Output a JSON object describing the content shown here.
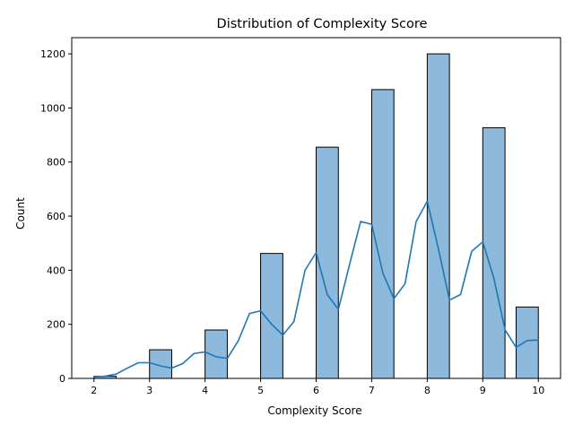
{
  "chart_data": {
    "type": "bar",
    "title": "Distribution of Complexity Score",
    "xlabel": "Complexity Score",
    "ylabel": "Count",
    "x_ticks": [
      2,
      3,
      4,
      5,
      6,
      7,
      8,
      9,
      10
    ],
    "y_ticks": [
      0,
      200,
      400,
      600,
      800,
      1000,
      1200
    ],
    "xlim": [
      1.6,
      10.4
    ],
    "ylim": [
      0,
      1260
    ],
    "grid": false,
    "bars": [
      {
        "x_start": 2.0,
        "x_end": 2.4,
        "count": 8
      },
      {
        "x_start": 3.0,
        "x_end": 3.4,
        "count": 106
      },
      {
        "x_start": 4.0,
        "x_end": 4.4,
        "count": 179
      },
      {
        "x_start": 5.0,
        "x_end": 5.4,
        "count": 462
      },
      {
        "x_start": 6.0,
        "x_end": 6.4,
        "count": 855
      },
      {
        "x_start": 7.0,
        "x_end": 7.4,
        "count": 1068
      },
      {
        "x_start": 8.0,
        "x_end": 8.4,
        "count": 1200
      },
      {
        "x_start": 9.0,
        "x_end": 9.4,
        "count": 927
      },
      {
        "x_start": 9.6,
        "x_end": 10.0,
        "count": 264
      }
    ],
    "kde_curve": {
      "x": [
        2.0,
        2.2,
        2.4,
        2.6,
        2.8,
        3.0,
        3.2,
        3.4,
        3.6,
        3.8,
        4.0,
        4.2,
        4.4,
        4.6,
        4.8,
        5.0,
        5.2,
        5.4,
        5.6,
        5.8,
        6.0,
        6.2,
        6.4,
        6.6,
        6.8,
        7.0,
        7.2,
        7.4,
        7.6,
        7.8,
        8.0,
        8.2,
        8.4,
        8.6,
        8.8,
        9.0,
        9.2,
        9.4,
        9.6,
        9.8,
        10.0
      ],
      "y": [
        6,
        8,
        16,
        38,
        58,
        58,
        46,
        38,
        55,
        92,
        98,
        80,
        74,
        140,
        240,
        250,
        200,
        160,
        210,
        400,
        465,
        310,
        255,
        420,
        580,
        570,
        390,
        295,
        350,
        580,
        655,
        480,
        290,
        310,
        470,
        505,
        370,
        180,
        115,
        140,
        142
      ]
    },
    "colors": {
      "bar_fill": "#8db9dc",
      "bar_edge": "#000000",
      "kde_line": "#1f77b4"
    }
  }
}
